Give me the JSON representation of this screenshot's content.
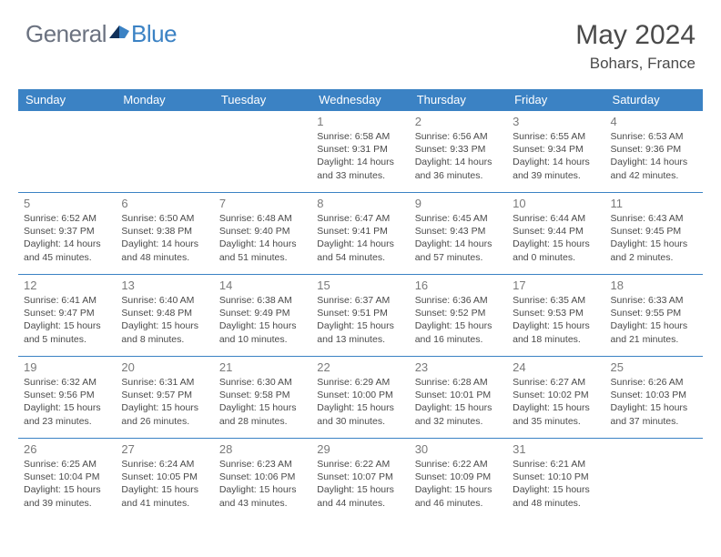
{
  "brand": {
    "part1": "General",
    "part2": "Blue"
  },
  "title": "May 2024",
  "location": "Bohars, France",
  "colors": {
    "header_bg": "#3b82c4",
    "header_text": "#ffffff",
    "border": "#3b82c4",
    "daynum": "#7a7a7a",
    "body_text": "#4a4a4a",
    "logo_gray": "#6b7280",
    "logo_blue": "#3b82c4",
    "page_bg": "#ffffff"
  },
  "weekdays": [
    "Sunday",
    "Monday",
    "Tuesday",
    "Wednesday",
    "Thursday",
    "Friday",
    "Saturday"
  ],
  "weeks": [
    [
      null,
      null,
      null,
      {
        "n": "1",
        "sunrise": "6:58 AM",
        "sunset": "9:31 PM",
        "dh": "14",
        "dm": "33"
      },
      {
        "n": "2",
        "sunrise": "6:56 AM",
        "sunset": "9:33 PM",
        "dh": "14",
        "dm": "36"
      },
      {
        "n": "3",
        "sunrise": "6:55 AM",
        "sunset": "9:34 PM",
        "dh": "14",
        "dm": "39"
      },
      {
        "n": "4",
        "sunrise": "6:53 AM",
        "sunset": "9:36 PM",
        "dh": "14",
        "dm": "42"
      }
    ],
    [
      {
        "n": "5",
        "sunrise": "6:52 AM",
        "sunset": "9:37 PM",
        "dh": "14",
        "dm": "45"
      },
      {
        "n": "6",
        "sunrise": "6:50 AM",
        "sunset": "9:38 PM",
        "dh": "14",
        "dm": "48"
      },
      {
        "n": "7",
        "sunrise": "6:48 AM",
        "sunset": "9:40 PM",
        "dh": "14",
        "dm": "51"
      },
      {
        "n": "8",
        "sunrise": "6:47 AM",
        "sunset": "9:41 PM",
        "dh": "14",
        "dm": "54"
      },
      {
        "n": "9",
        "sunrise": "6:45 AM",
        "sunset": "9:43 PM",
        "dh": "14",
        "dm": "57"
      },
      {
        "n": "10",
        "sunrise": "6:44 AM",
        "sunset": "9:44 PM",
        "dh": "15",
        "dm": "0"
      },
      {
        "n": "11",
        "sunrise": "6:43 AM",
        "sunset": "9:45 PM",
        "dh": "15",
        "dm": "2"
      }
    ],
    [
      {
        "n": "12",
        "sunrise": "6:41 AM",
        "sunset": "9:47 PM",
        "dh": "15",
        "dm": "5"
      },
      {
        "n": "13",
        "sunrise": "6:40 AM",
        "sunset": "9:48 PM",
        "dh": "15",
        "dm": "8"
      },
      {
        "n": "14",
        "sunrise": "6:38 AM",
        "sunset": "9:49 PM",
        "dh": "15",
        "dm": "10"
      },
      {
        "n": "15",
        "sunrise": "6:37 AM",
        "sunset": "9:51 PM",
        "dh": "15",
        "dm": "13"
      },
      {
        "n": "16",
        "sunrise": "6:36 AM",
        "sunset": "9:52 PM",
        "dh": "15",
        "dm": "16"
      },
      {
        "n": "17",
        "sunrise": "6:35 AM",
        "sunset": "9:53 PM",
        "dh": "15",
        "dm": "18"
      },
      {
        "n": "18",
        "sunrise": "6:33 AM",
        "sunset": "9:55 PM",
        "dh": "15",
        "dm": "21"
      }
    ],
    [
      {
        "n": "19",
        "sunrise": "6:32 AM",
        "sunset": "9:56 PM",
        "dh": "15",
        "dm": "23"
      },
      {
        "n": "20",
        "sunrise": "6:31 AM",
        "sunset": "9:57 PM",
        "dh": "15",
        "dm": "26"
      },
      {
        "n": "21",
        "sunrise": "6:30 AM",
        "sunset": "9:58 PM",
        "dh": "15",
        "dm": "28"
      },
      {
        "n": "22",
        "sunrise": "6:29 AM",
        "sunset": "10:00 PM",
        "dh": "15",
        "dm": "30"
      },
      {
        "n": "23",
        "sunrise": "6:28 AM",
        "sunset": "10:01 PM",
        "dh": "15",
        "dm": "32"
      },
      {
        "n": "24",
        "sunrise": "6:27 AM",
        "sunset": "10:02 PM",
        "dh": "15",
        "dm": "35"
      },
      {
        "n": "25",
        "sunrise": "6:26 AM",
        "sunset": "10:03 PM",
        "dh": "15",
        "dm": "37"
      }
    ],
    [
      {
        "n": "26",
        "sunrise": "6:25 AM",
        "sunset": "10:04 PM",
        "dh": "15",
        "dm": "39"
      },
      {
        "n": "27",
        "sunrise": "6:24 AM",
        "sunset": "10:05 PM",
        "dh": "15",
        "dm": "41"
      },
      {
        "n": "28",
        "sunrise": "6:23 AM",
        "sunset": "10:06 PM",
        "dh": "15",
        "dm": "43"
      },
      {
        "n": "29",
        "sunrise": "6:22 AM",
        "sunset": "10:07 PM",
        "dh": "15",
        "dm": "44"
      },
      {
        "n": "30",
        "sunrise": "6:22 AM",
        "sunset": "10:09 PM",
        "dh": "15",
        "dm": "46"
      },
      {
        "n": "31",
        "sunrise": "6:21 AM",
        "sunset": "10:10 PM",
        "dh": "15",
        "dm": "48"
      },
      null
    ]
  ]
}
